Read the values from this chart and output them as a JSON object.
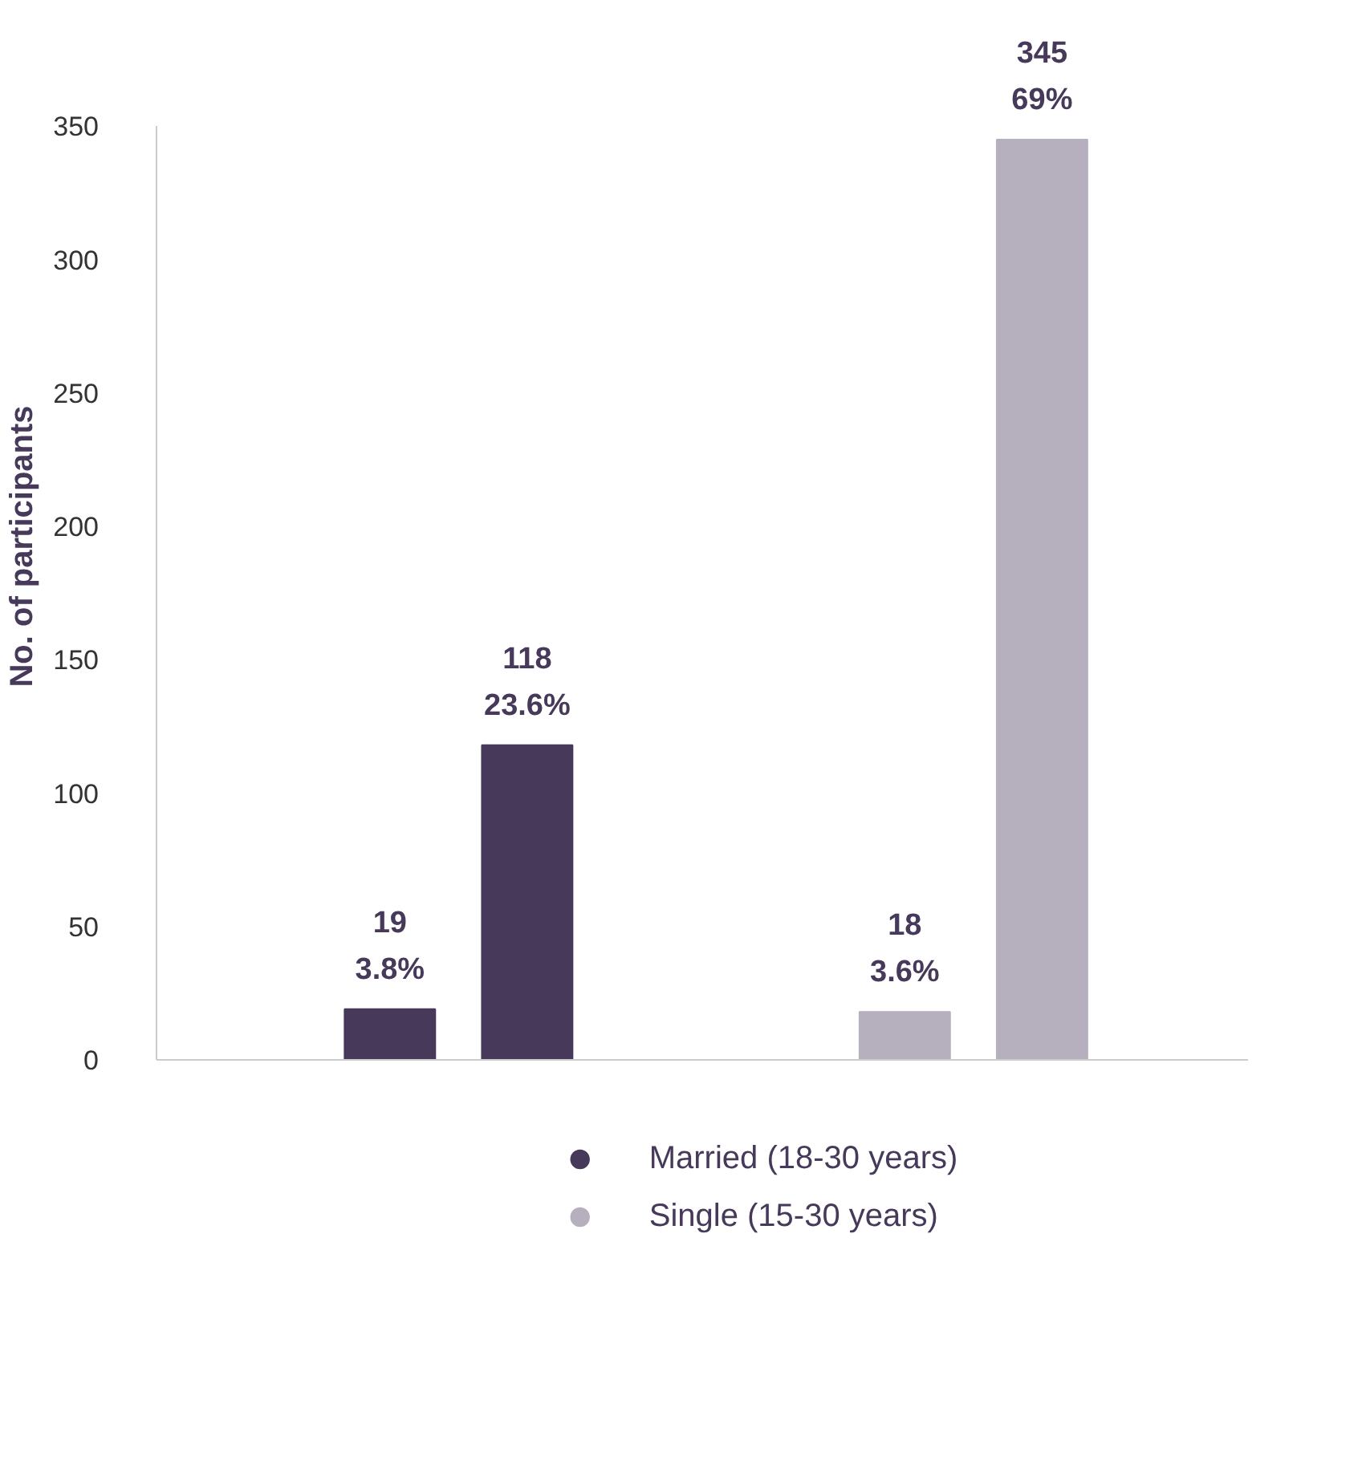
{
  "chart_data": {
    "type": "bar",
    "ylabel": "No. of participants",
    "categories": [
      null,
      null,
      null,
      null
    ],
    "series": [
      {
        "name": "Married (18-30 years)",
        "color": "#46395a",
        "values": [
          19,
          118,
          null,
          null
        ],
        "value_labels": [
          "19\n3.8%",
          "118\n23.6%",
          null,
          null
        ]
      },
      {
        "name": "Single (15-30 years)",
        "color": "#b6afbe",
        "values": [
          null,
          null,
          18,
          345
        ],
        "value_labels": [
          null,
          null,
          "18\n3.6%",
          "345\n69%"
        ]
      }
    ],
    "ylim": [
      0,
      350
    ],
    "yticks": [
      0,
      50,
      100,
      150,
      200,
      250,
      300,
      350
    ],
    "grid": false,
    "legend": "bottom"
  }
}
